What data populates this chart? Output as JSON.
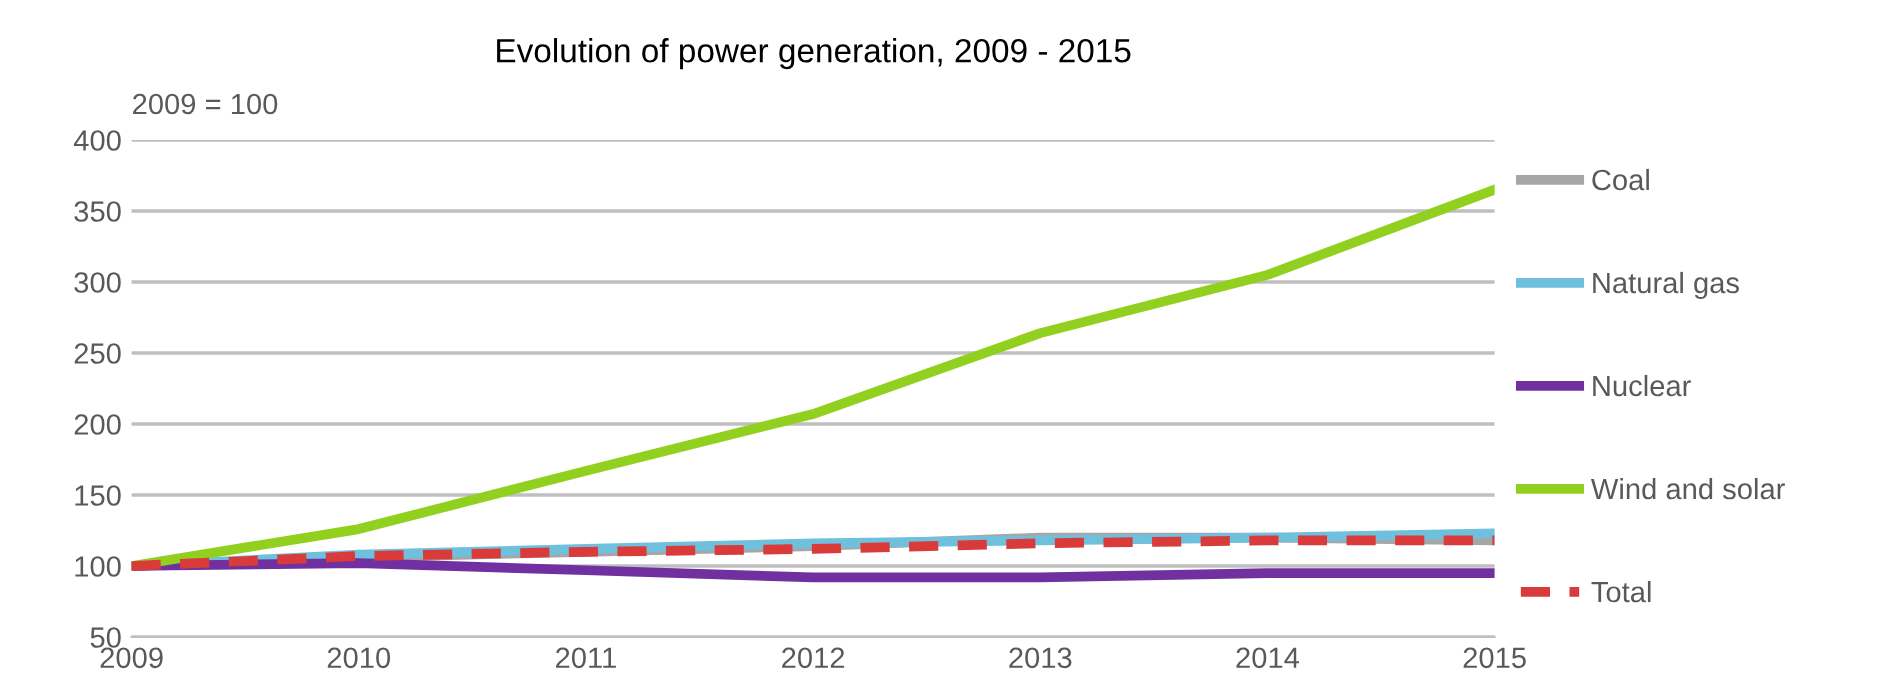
{
  "chart_data": {
    "type": "line",
    "title": "Evolution of power generation, 2009 - 2015",
    "ylabel": "2009 = 100",
    "x": [
      2009,
      2010,
      2011,
      2012,
      2013,
      2014,
      2015
    ],
    "series": [
      {
        "name": "Coal",
        "color": "#a6a6a6",
        "values": [
          100,
          106,
          110,
          114,
          120,
          120,
          118
        ]
      },
      {
        "name": "Natural gas",
        "color": "#6fc0dc",
        "values": [
          100,
          108,
          112,
          116,
          118,
          120,
          123
        ]
      },
      {
        "name": "Nuclear",
        "color": "#7030a0",
        "values": [
          100,
          102,
          97,
          92,
          92,
          95,
          95
        ]
      },
      {
        "name": "Wind and solar",
        "color": "#92d020",
        "values": [
          100,
          126,
          167,
          207,
          264,
          305,
          365
        ]
      },
      {
        "name": "Total",
        "color": "#d93b3b",
        "values": [
          100,
          107,
          110,
          112,
          116,
          118,
          118
        ],
        "line_style": "dashed"
      }
    ],
    "xlim": [
      2009,
      2015
    ],
    "xticks": [
      2009,
      2010,
      2011,
      2012,
      2013,
      2014,
      2015
    ],
    "ylim": [
      50,
      400
    ],
    "yticks": [
      50,
      100,
      150,
      200,
      250,
      300,
      350,
      400
    ],
    "grid": "y",
    "legend": "right",
    "marker": "none",
    "line_style": "solid"
  }
}
